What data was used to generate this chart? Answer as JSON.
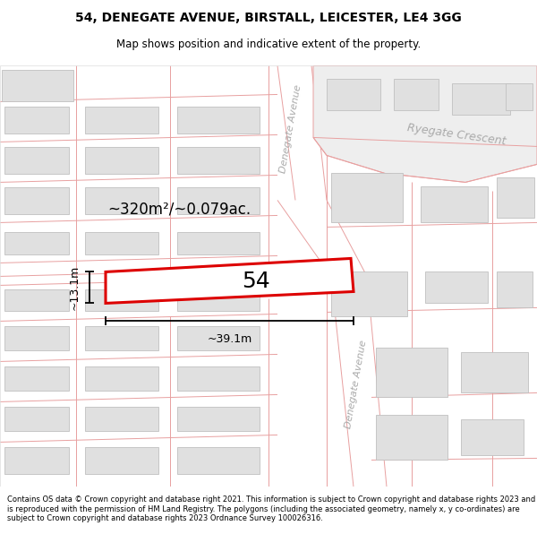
{
  "title_line1": "54, DENEGATE AVENUE, BIRSTALL, LEICESTER, LE4 3GG",
  "title_line2": "Map shows position and indicative extent of the property.",
  "footer_text": "Contains OS data © Crown copyright and database right 2021. This information is subject to Crown copyright and database rights 2023 and is reproduced with the permission of HM Land Registry. The polygons (including the associated geometry, namely x, y co-ordinates) are subject to Crown copyright and database rights 2023 Ordnance Survey 100026316.",
  "area_label": "~320m²/~0.079ac.",
  "width_label": "~39.1m",
  "height_label": "~13.1m",
  "plot_number": "54",
  "map_bg": "#ffffff",
  "building_fill": "#e0e0e0",
  "building_edge": "#c0c0c0",
  "plot_edge_color": "#dd0000",
  "plot_fill": "#ffffff",
  "parcel_line_color": "#e8a0a0",
  "street_text_color": "#aaaaaa",
  "dim_line_color": "#000000",
  "street_label_upper": "Denegate Avenue",
  "street_label_lower": "Denegate Avenue",
  "crescent_label": "Ryegate Crescent"
}
